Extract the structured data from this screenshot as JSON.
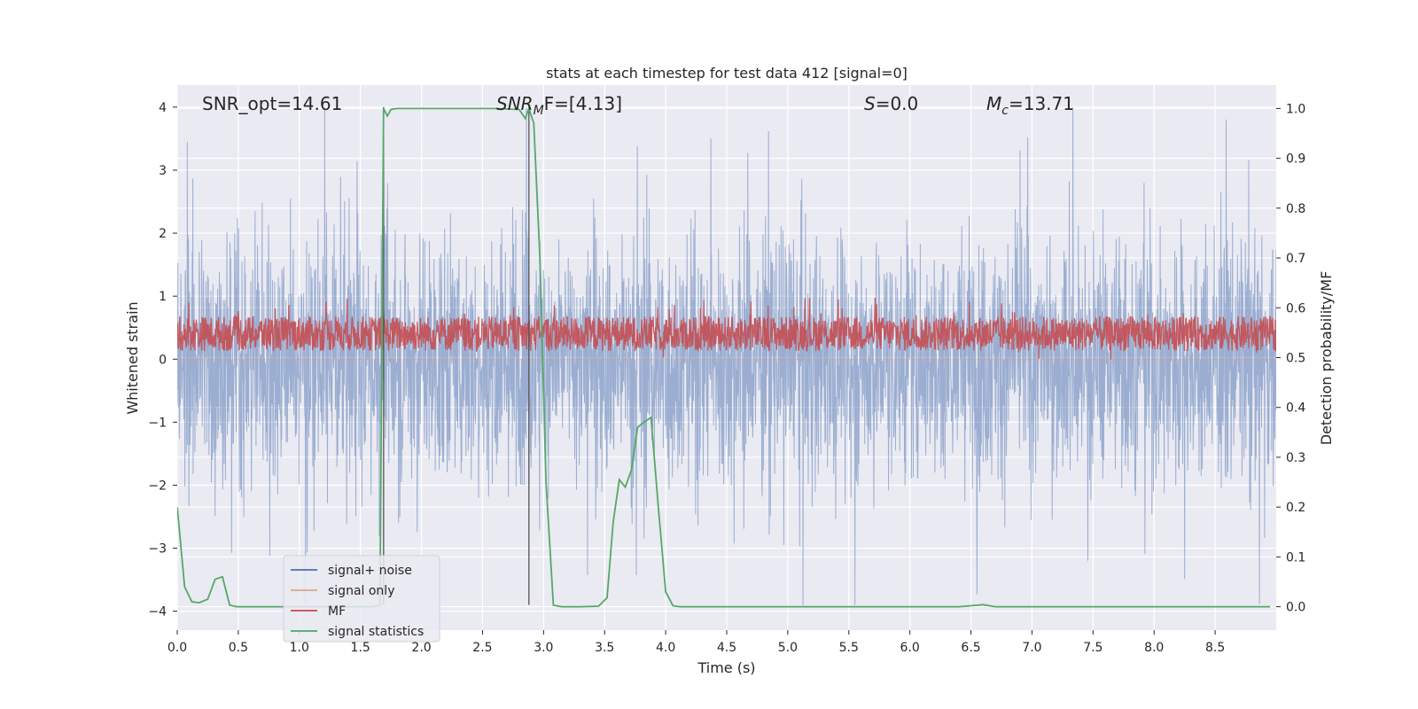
{
  "chart_data": {
    "type": "line",
    "title": "stats at each timestep for test data 412 [signal=0]",
    "xlabel": "Time (s)",
    "ylabel": "Whitened strain",
    "y2label": "Detection probability/MF",
    "xlim": [
      0.0,
      9.0
    ],
    "ylim": [
      -4.3,
      4.35
    ],
    "y2lim": [
      -0.047,
      1.047
    ],
    "xticks": [
      0.0,
      0.5,
      1.0,
      1.5,
      2.0,
      2.5,
      3.0,
      3.5,
      4.0,
      4.5,
      5.0,
      5.5,
      6.0,
      6.5,
      7.0,
      7.5,
      8.0,
      8.5
    ],
    "xtick_labels": [
      "0.0",
      "0.5",
      "1.0",
      "1.5",
      "2.0",
      "2.5",
      "3.0",
      "3.5",
      "4.0",
      "4.5",
      "5.0",
      "5.5",
      "6.0",
      "6.5",
      "7.0",
      "7.5",
      "8.0",
      "8.5"
    ],
    "yticks": [
      -4,
      -3,
      -2,
      -1,
      0,
      1,
      2,
      3,
      4
    ],
    "ytick_labels": [
      "−4",
      "−3",
      "−2",
      "−1",
      "0",
      "1",
      "2",
      "3",
      "4"
    ],
    "y2ticks": [
      0.0,
      0.1,
      0.2,
      0.3,
      0.4,
      0.5,
      0.6,
      0.7,
      0.8,
      0.9,
      1.0
    ],
    "y2tick_labels": [
      "0.0",
      "0.1",
      "0.2",
      "0.3",
      "0.4",
      "0.5",
      "0.6",
      "0.7",
      "0.8",
      "0.9",
      "1.0"
    ],
    "grid": true,
    "legend_position": "lower-left",
    "colors": {
      "noise": "#4c72b0",
      "signal_only": "#dd8452",
      "mf": "#c44e52",
      "stats": "#55a868",
      "background": "#eaeaf2",
      "vline": "#555555"
    },
    "annotations": {
      "snr_opt": "SNR_opt=14.61",
      "snr_mf_main": "SNR",
      "snr_mf_sub": "M",
      "snr_mf_rest": "F=[4.13]",
      "s_main": "S",
      "s_rest": "=0.0",
      "mc_main": "M",
      "mc_sub": "c",
      "mc_rest": "=13.71"
    },
    "vertical_lines": [
      {
        "x": 1.69,
        "y_range": [
          -3.9,
          4.0
        ]
      },
      {
        "x": 2.88,
        "y_range": [
          -3.9,
          4.0
        ]
      }
    ],
    "series": [
      {
        "name": "signal+ noise",
        "kind": "noise_band",
        "approx_range": [
          -3.9,
          4.0
        ]
      },
      {
        "name": "signal only",
        "kind": "flat"
      },
      {
        "name": "MF",
        "kind": "noise_band",
        "axis": "y2",
        "approx_range": [
          0.495,
          0.62
        ]
      },
      {
        "name": "signal statistics",
        "kind": "line",
        "axis": "y2",
        "x": [
          0.0,
          0.06,
          0.12,
          0.18,
          0.25,
          0.31,
          0.37,
          0.43,
          0.49,
          0.55,
          0.65,
          0.8,
          1.0,
          1.2,
          1.4,
          1.6,
          1.66,
          1.69,
          1.72,
          1.75,
          1.8,
          1.9,
          2.0,
          2.2,
          2.4,
          2.6,
          2.8,
          2.85,
          2.88,
          2.92,
          2.97,
          3.02,
          3.08,
          3.15,
          3.3,
          3.45,
          3.52,
          3.57,
          3.62,
          3.67,
          3.72,
          3.77,
          3.82,
          3.88,
          3.94,
          4.0,
          4.06,
          4.12,
          4.3,
          4.6,
          5.0,
          5.5,
          6.0,
          6.4,
          6.5,
          6.6,
          6.7,
          7.0,
          7.5,
          8.0,
          8.5,
          8.95
        ],
        "y": [
          0.2,
          0.04,
          0.01,
          0.008,
          0.015,
          0.055,
          0.06,
          0.003,
          0.0,
          0.0,
          0.0,
          0.0,
          0.0,
          0.0,
          0.0,
          0.0,
          0.003,
          1.0,
          0.985,
          0.998,
          1.0,
          1.0,
          1.0,
          1.0,
          1.0,
          1.0,
          0.998,
          0.98,
          1.0,
          0.97,
          0.7,
          0.25,
          0.003,
          0.0,
          0.0,
          0.001,
          0.018,
          0.17,
          0.255,
          0.24,
          0.275,
          0.36,
          0.37,
          0.38,
          0.2,
          0.03,
          0.002,
          0.0,
          0.0,
          0.0,
          0.0,
          0.0,
          0.0,
          0.0,
          0.002,
          0.004,
          0.0,
          0.0,
          0.0,
          0.0,
          0.0,
          0.0
        ]
      }
    ],
    "legend": [
      {
        "label": "signal+ noise",
        "color": "#4c72b0"
      },
      {
        "label": "signal only",
        "color": "#dd8452"
      },
      {
        "label": "MF",
        "color": "#c44e52"
      },
      {
        "label": "signal statistics",
        "color": "#55a868"
      }
    ]
  }
}
